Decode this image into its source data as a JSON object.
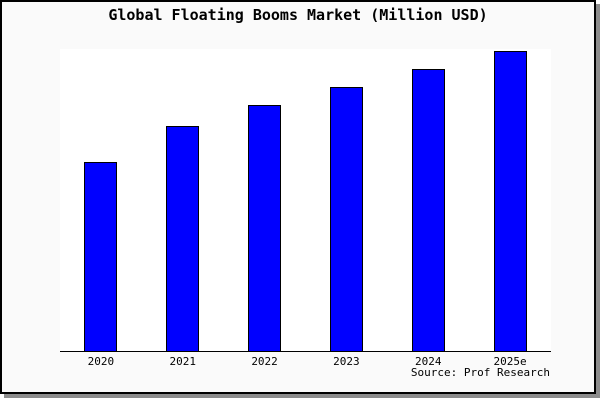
{
  "window": {
    "background_color": "#fafafa",
    "plot_background_color": "#ffffff",
    "border_color": "#000000",
    "shadow_color": "#8c8c8c"
  },
  "title": "Global Floating Booms Market (Million USD)",
  "source": "Source: Prof Research",
  "chart_data": {
    "type": "bar",
    "title": "Global Floating Booms Market (Million USD)",
    "categories": [
      "2020",
      "2021",
      "2022",
      "2023",
      "2024",
      "2025e"
    ],
    "values": [
      63,
      75,
      82,
      88,
      94,
      100
    ],
    "values_note": "No y-axis ticks or value labels are shown; values are estimated from bar pixel heights, normalized so the 2025e bar = 100.",
    "xlabel": "",
    "ylabel": "",
    "ylim": [
      0,
      101
    ],
    "grid": false,
    "legend": false,
    "y_axis_visible": false,
    "bar_color": "#0000ff",
    "bar_border_color": "#000000",
    "annotation": "Source: Prof Research"
  }
}
